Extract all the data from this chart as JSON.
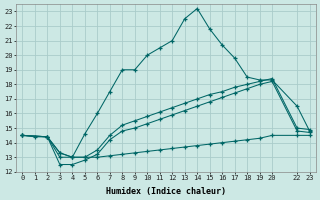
{
  "xlabel": "Humidex (Indice chaleur)",
  "bg_color": "#cce8e4",
  "grid_color": "#aaccca",
  "line_color": "#006666",
  "line1_x": [
    0,
    1,
    2,
    3,
    4,
    5,
    6,
    7,
    8,
    9,
    10,
    11,
    12,
    13,
    14,
    15,
    16,
    17,
    18,
    19,
    20,
    22,
    23
  ],
  "line1_y": [
    14.5,
    14.4,
    14.4,
    13.3,
    13.0,
    14.6,
    16.0,
    17.5,
    19.0,
    19.0,
    20.0,
    20.5,
    21.0,
    22.5,
    23.2,
    21.8,
    20.7,
    19.8,
    18.5,
    18.3,
    18.3,
    16.5,
    14.8
  ],
  "line2_x": [
    0,
    2,
    3,
    4,
    5,
    6,
    7,
    8,
    9,
    10,
    11,
    12,
    13,
    14,
    15,
    16,
    17,
    18,
    19,
    20,
    22,
    23
  ],
  "line2_y": [
    14.5,
    14.4,
    13.0,
    13.0,
    13.0,
    13.5,
    14.5,
    15.2,
    15.5,
    15.8,
    16.1,
    16.4,
    16.7,
    17.0,
    17.3,
    17.5,
    17.8,
    18.0,
    18.2,
    18.4,
    15.0,
    14.9
  ],
  "line3_x": [
    0,
    2,
    3,
    4,
    5,
    6,
    7,
    8,
    9,
    10,
    11,
    12,
    13,
    14,
    15,
    16,
    17,
    18,
    19,
    20,
    22,
    23
  ],
  "line3_y": [
    14.5,
    14.4,
    12.5,
    12.5,
    12.8,
    13.2,
    14.2,
    14.8,
    15.0,
    15.3,
    15.6,
    15.9,
    16.2,
    16.5,
    16.8,
    17.1,
    17.4,
    17.7,
    18.0,
    18.2,
    14.8,
    14.7
  ],
  "line4_x": [
    0,
    2,
    3,
    4,
    5,
    6,
    7,
    8,
    9,
    10,
    11,
    12,
    13,
    14,
    15,
    16,
    17,
    18,
    19,
    20,
    22,
    23
  ],
  "line4_y": [
    14.5,
    14.4,
    13.3,
    13.0,
    13.0,
    13.0,
    13.1,
    13.2,
    13.3,
    13.4,
    13.5,
    13.6,
    13.7,
    13.8,
    13.9,
    14.0,
    14.1,
    14.2,
    14.3,
    14.5,
    14.5,
    14.5
  ],
  "ylim": [
    12,
    23.5
  ],
  "xlim": [
    -0.5,
    23.5
  ],
  "yticks": [
    12,
    13,
    14,
    15,
    16,
    17,
    18,
    19,
    20,
    21,
    22,
    23
  ],
  "xticks": [
    0,
    1,
    2,
    3,
    4,
    5,
    6,
    7,
    8,
    9,
    10,
    11,
    12,
    13,
    14,
    15,
    16,
    17,
    18,
    19,
    20,
    22,
    23
  ]
}
